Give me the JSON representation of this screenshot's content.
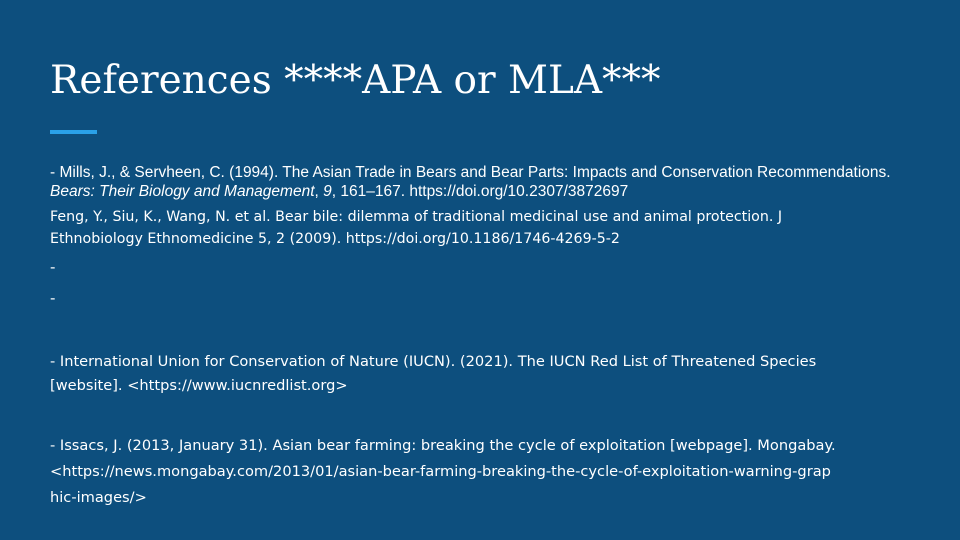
{
  "slide": {
    "title": "References ****APA or MLA***",
    "references": {
      "mills": {
        "part1": "- Mills, J., & Servheen, C. (1994). The Asian Trade in Bears and Bear Parts: Impacts and Conservation Recommendations. ",
        "journal": "Bears: Their Biology and Management",
        "part2": ", ",
        "volume": "9",
        "part3": ", 161–167. https://doi.org/10.2307/3872697"
      },
      "feng": {
        "line1": "Feng, Y., Siu, K., Wang, N. et al. Bear bile: dilemma of traditional medicinal use and animal protection. J",
        "line2": "Ethnobiology Ethnomedicine 5, 2 (2009). https://doi.org/10.1186/1746-4269-5-2"
      },
      "dash1": "-",
      "dash2": "-",
      "iucn": {
        "line1": "- International Union for Conservation of Nature (IUCN). (2021). The IUCN Red List of Threatened Species",
        "line2": "[website]. <https://www.iucnredlist.org>"
      },
      "issacs": {
        "line1": "- Issacs, J. (2013, January 31). Asian bear farming: breaking the cycle of exploitation [webpage]. Mongabay.",
        "line2": "<https://news.mongabay.com/2013/01/asian-bear-farming-breaking-the-cycle-of-exploitation-warning-grap",
        "line3": "hic-images/>"
      }
    }
  },
  "colors": {
    "background": "#0d4f7e",
    "accent": "#2aa1e8",
    "text": "#ffffff"
  }
}
